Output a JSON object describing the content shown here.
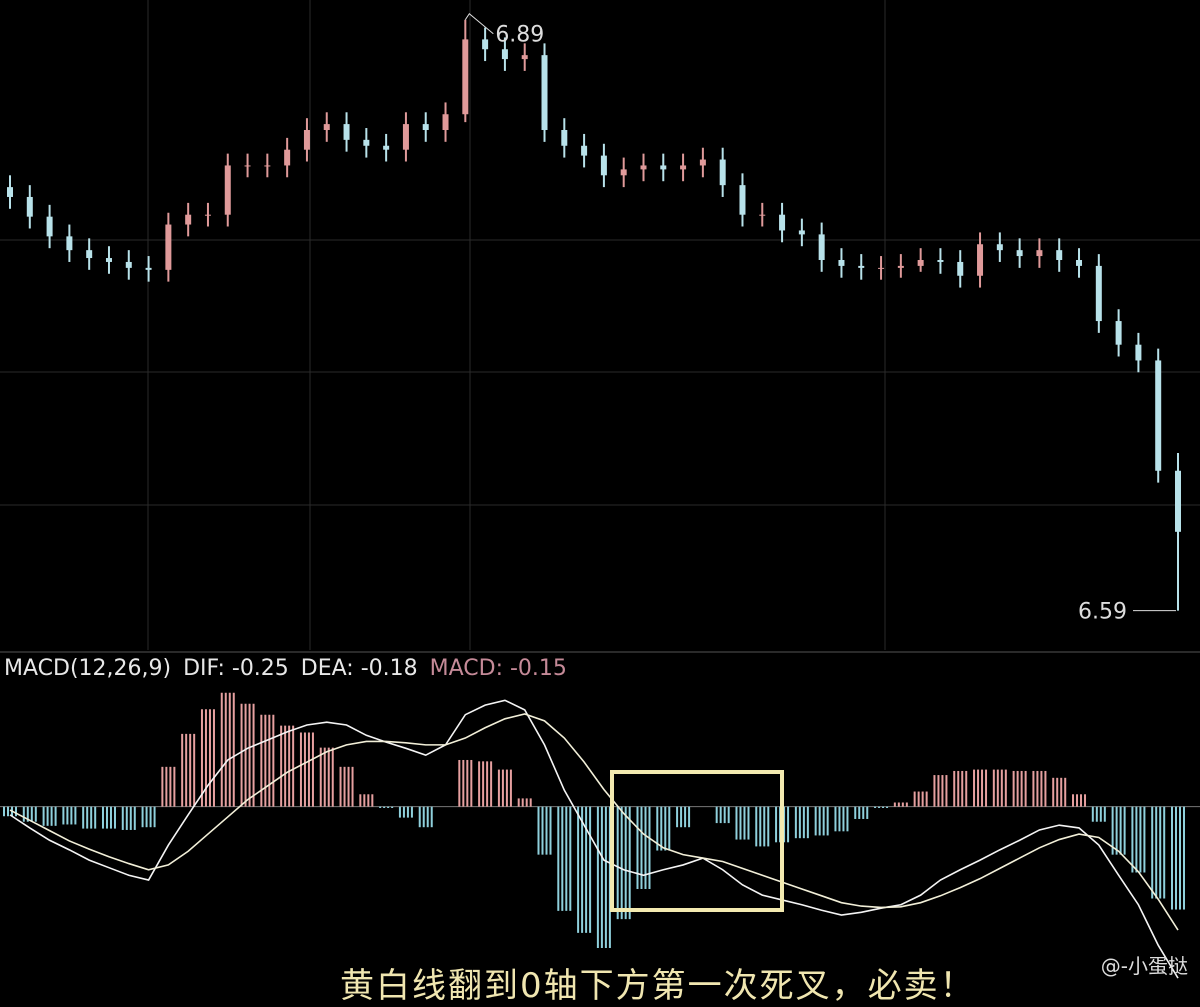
{
  "chart_data": [
    {
      "type": "candlestick",
      "high_label": "6.89",
      "low_label": "6.59",
      "up_color": "#e09a9a",
      "down_color": "#b8e2ea",
      "ylim": [
        6.57,
        6.9
      ],
      "open": [
        6.805,
        6.8,
        6.79,
        6.78,
        6.773,
        6.769,
        6.767,
        6.764,
        6.763,
        6.786,
        6.791,
        6.791,
        6.816,
        6.816,
        6.816,
        6.824,
        6.834,
        6.837,
        6.829,
        6.826,
        6.824,
        6.837,
        6.834,
        6.842,
        6.88,
        6.875,
        6.87,
        6.872,
        6.834,
        6.826,
        6.821,
        6.811,
        6.814,
        6.816,
        6.814,
        6.816,
        6.819,
        6.806,
        6.791,
        6.791,
        6.783,
        6.781,
        6.768,
        6.765,
        6.764,
        6.764,
        6.765,
        6.768,
        6.767,
        6.76,
        6.776,
        6.773,
        6.77,
        6.773,
        6.768,
        6.765,
        6.737,
        6.725,
        6.717,
        6.661
      ],
      "close": [
        6.8,
        6.79,
        6.78,
        6.773,
        6.769,
        6.767,
        6.764,
        6.763,
        6.786,
        6.791,
        6.791,
        6.816,
        6.816,
        6.816,
        6.824,
        6.834,
        6.837,
        6.829,
        6.826,
        6.824,
        6.837,
        6.834,
        6.842,
        6.88,
        6.875,
        6.87,
        6.872,
        6.834,
        6.826,
        6.821,
        6.811,
        6.814,
        6.816,
        6.814,
        6.816,
        6.819,
        6.806,
        6.791,
        6.791,
        6.783,
        6.781,
        6.768,
        6.765,
        6.764,
        6.764,
        6.765,
        6.768,
        6.767,
        6.76,
        6.776,
        6.773,
        6.77,
        6.773,
        6.768,
        6.765,
        6.737,
        6.725,
        6.717,
        6.661,
        6.63
      ],
      "high": [
        6.811,
        6.806,
        6.796,
        6.786,
        6.779,
        6.775,
        6.773,
        6.77,
        6.792,
        6.797,
        6.797,
        6.822,
        6.822,
        6.822,
        6.83,
        6.84,
        6.843,
        6.843,
        6.835,
        6.832,
        6.843,
        6.843,
        6.848,
        6.89,
        6.886,
        6.881,
        6.878,
        6.878,
        6.84,
        6.832,
        6.827,
        6.82,
        6.822,
        6.822,
        6.822,
        6.825,
        6.825,
        6.812,
        6.797,
        6.797,
        6.789,
        6.787,
        6.774,
        6.771,
        6.77,
        6.771,
        6.774,
        6.774,
        6.773,
        6.782,
        6.782,
        6.779,
        6.779,
        6.779,
        6.774,
        6.771,
        6.743,
        6.731,
        6.723,
        6.67
      ],
      "low": [
        6.794,
        6.784,
        6.774,
        6.767,
        6.763,
        6.761,
        6.758,
        6.757,
        6.757,
        6.78,
        6.785,
        6.785,
        6.81,
        6.81,
        6.81,
        6.818,
        6.828,
        6.823,
        6.82,
        6.818,
        6.818,
        6.828,
        6.828,
        6.838,
        6.869,
        6.864,
        6.864,
        6.828,
        6.82,
        6.815,
        6.805,
        6.805,
        6.808,
        6.808,
        6.808,
        6.81,
        6.8,
        6.785,
        6.785,
        6.777,
        6.775,
        6.762,
        6.759,
        6.758,
        6.758,
        6.759,
        6.762,
        6.761,
        6.754,
        6.754,
        6.767,
        6.764,
        6.764,
        6.762,
        6.759,
        6.731,
        6.719,
        6.711,
        6.655,
        6.59
      ]
    },
    {
      "type": "macd",
      "label": "MACD(12,26,9)",
      "dif_label": "DIF: -0.25",
      "dea_label": "DEA: -0.18",
      "macd_label": "MACD: -0.15",
      "ylim": [
        -0.26,
        0.17
      ],
      "series": [
        {
          "name": "DIF",
          "color": "#f4f4f4",
          "values": [
            -0.012,
            -0.031,
            -0.049,
            -0.063,
            -0.078,
            -0.089,
            -0.1,
            -0.107,
            -0.056,
            -0.012,
            0.031,
            0.068,
            0.085,
            0.097,
            0.109,
            0.119,
            0.123,
            0.119,
            0.104,
            0.094,
            0.085,
            0.075,
            0.09,
            0.134,
            0.148,
            0.155,
            0.141,
            0.09,
            0.024,
            -0.027,
            -0.078,
            -0.092,
            -0.1,
            -0.092,
            -0.085,
            -0.075,
            -0.092,
            -0.114,
            -0.129,
            -0.136,
            -0.143,
            -0.151,
            -0.158,
            -0.154,
            -0.148,
            -0.143,
            -0.129,
            -0.107,
            -0.092,
            -0.078,
            -0.063,
            -0.049,
            -0.034,
            -0.027,
            -0.031,
            -0.056,
            -0.1,
            -0.143,
            -0.202,
            -0.25
          ]
        },
        {
          "name": "DEA",
          "color": "#f2efd8",
          "values": [
            -0.005,
            -0.02,
            -0.035,
            -0.05,
            -0.062,
            -0.073,
            -0.083,
            -0.092,
            -0.085,
            -0.065,
            -0.04,
            -0.015,
            0.01,
            0.03,
            0.05,
            0.065,
            0.08,
            0.09,
            0.095,
            0.095,
            0.093,
            0.09,
            0.09,
            0.1,
            0.115,
            0.128,
            0.135,
            0.125,
            0.1,
            0.065,
            0.025,
            -0.01,
            -0.04,
            -0.06,
            -0.07,
            -0.075,
            -0.08,
            -0.09,
            -0.1,
            -0.11,
            -0.12,
            -0.13,
            -0.14,
            -0.145,
            -0.147,
            -0.146,
            -0.14,
            -0.13,
            -0.118,
            -0.105,
            -0.09,
            -0.075,
            -0.06,
            -0.048,
            -0.04,
            -0.045,
            -0.065,
            -0.095,
            -0.135,
            -0.18
          ]
        },
        {
          "name": "MACD",
          "up_color": "#e6a0a0",
          "down_color": "#8fd0dc",
          "values": [
            -0.014,
            -0.022,
            -0.028,
            -0.026,
            -0.032,
            -0.032,
            -0.034,
            -0.03,
            0.058,
            0.106,
            0.142,
            0.166,
            0.15,
            0.134,
            0.118,
            0.108,
            0.086,
            0.058,
            0.018,
            -0.002,
            -0.016,
            -0.03,
            0,
            0.068,
            0.066,
            0.054,
            0.012,
            -0.07,
            -0.152,
            -0.184,
            -0.206,
            -0.164,
            -0.12,
            -0.064,
            -0.03,
            0,
            -0.024,
            -0.048,
            -0.058,
            -0.052,
            -0.046,
            -0.042,
            -0.036,
            -0.018,
            -0.002,
            0.006,
            0.022,
            0.046,
            0.052,
            0.054,
            0.054,
            0.052,
            0.052,
            0.042,
            0.018,
            -0.022,
            -0.07,
            -0.096,
            -0.134,
            -0.15
          ]
        }
      ]
    }
  ],
  "caption": "黄白线翻到0轴下方第一次死叉，必卖！",
  "watermark": "@-小蛋挞"
}
